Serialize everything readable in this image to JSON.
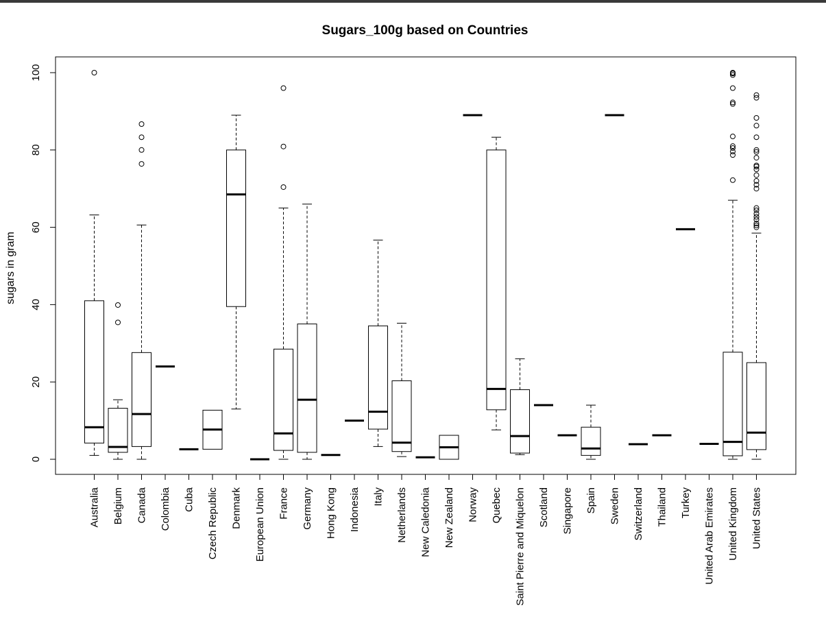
{
  "chart_data": {
    "type": "boxplot",
    "title": "Sugars_100g based on Countries",
    "xlabel": "",
    "ylabel": "sugars in gram",
    "ylim": [
      -4,
      104
    ],
    "yticks": [
      0,
      20,
      40,
      60,
      80,
      100
    ],
    "grid": false,
    "categories": [
      "Australia",
      "Belgium",
      "Canada",
      "Colombia",
      "Cuba",
      "Czech Republic",
      "Denmark",
      "European Union",
      "France",
      "Germany",
      "Hong Kong",
      "Indonesia",
      "Italy",
      "Netherlands",
      "New Caledonia",
      "New Zealand",
      "Norway",
      "Quebec",
      "Saint Pierre and Miquelon",
      "Scotland",
      "Singapore",
      "Spain",
      "Sweden",
      "Switzerland",
      "Thailand",
      "Turkey",
      "United Arab Emirates",
      "United Kingdom",
      "United States"
    ],
    "boxes": [
      {
        "min": 1.0,
        "q1": 4.2,
        "median": 8.3,
        "q3": 41.0,
        "max": 63.2,
        "outliers": [
          100
        ]
      },
      {
        "min": 0.0,
        "q1": 1.8,
        "median": 3.2,
        "q3": 13.2,
        "max": 15.4,
        "outliers": [
          35.4,
          39.9
        ]
      },
      {
        "min": 0.0,
        "q1": 3.3,
        "median": 11.7,
        "q3": 27.6,
        "max": 60.6,
        "outliers": [
          76.4,
          80.0,
          83.3,
          86.7
        ]
      },
      {
        "min": 24.0,
        "q1": 24.0,
        "median": 24.0,
        "q3": 24.0,
        "max": 24.0,
        "outliers": []
      },
      {
        "min": 2.6,
        "q1": 2.6,
        "median": 2.6,
        "q3": 2.6,
        "max": 2.6,
        "outliers": []
      },
      {
        "min": 2.6,
        "q1": 2.6,
        "median": 7.7,
        "q3": 12.7,
        "max": 12.7,
        "outliers": []
      },
      {
        "min": 13.0,
        "q1": 39.5,
        "median": 68.5,
        "q3": 80.0,
        "max": 89.0,
        "outliers": []
      },
      {
        "min": 0.0,
        "q1": 0.0,
        "median": 0.0,
        "q3": 0.0,
        "max": 0.0,
        "outliers": []
      },
      {
        "min": 0.0,
        "q1": 2.3,
        "median": 6.7,
        "q3": 28.5,
        "max": 65.0,
        "outliers": [
          70.4,
          80.9,
          96.0
        ]
      },
      {
        "min": 0.0,
        "q1": 1.8,
        "median": 15.4,
        "q3": 35.0,
        "max": 66.0,
        "outliers": []
      },
      {
        "min": 1.1,
        "q1": 1.1,
        "median": 1.1,
        "q3": 1.1,
        "max": 1.1,
        "outliers": []
      },
      {
        "min": 10.0,
        "q1": 10.0,
        "median": 10.0,
        "q3": 10.0,
        "max": 10.0,
        "outliers": []
      },
      {
        "min": 3.3,
        "q1": 7.8,
        "median": 12.3,
        "q3": 34.5,
        "max": 56.7,
        "outliers": []
      },
      {
        "min": 0.7,
        "q1": 2.0,
        "median": 4.3,
        "q3": 20.3,
        "max": 35.2,
        "outliers": []
      },
      {
        "min": 0.5,
        "q1": 0.5,
        "median": 0.5,
        "q3": 0.5,
        "max": 0.5,
        "outliers": []
      },
      {
        "min": 0.0,
        "q1": 0.0,
        "median": 3.1,
        "q3": 6.2,
        "max": 6.2,
        "outliers": []
      },
      {
        "min": 89.0,
        "q1": 89.0,
        "median": 89.0,
        "q3": 89.0,
        "max": 89.0,
        "outliers": []
      },
      {
        "min": 7.6,
        "q1": 12.8,
        "median": 18.2,
        "q3": 80.0,
        "max": 83.3,
        "outliers": []
      },
      {
        "min": 1.2,
        "q1": 1.6,
        "median": 6.0,
        "q3": 18.0,
        "max": 26.0,
        "outliers": []
      },
      {
        "min": 14.0,
        "q1": 14.0,
        "median": 14.0,
        "q3": 14.0,
        "max": 14.0,
        "outliers": []
      },
      {
        "min": 6.2,
        "q1": 6.2,
        "median": 6.2,
        "q3": 6.2,
        "max": 6.2,
        "outliers": []
      },
      {
        "min": 0.0,
        "q1": 1.0,
        "median": 2.8,
        "q3": 8.3,
        "max": 14.0,
        "outliers": []
      },
      {
        "min": 89.0,
        "q1": 89.0,
        "median": 89.0,
        "q3": 89.0,
        "max": 89.0,
        "outliers": []
      },
      {
        "min": 3.9,
        "q1": 3.9,
        "median": 3.9,
        "q3": 3.9,
        "max": 3.9,
        "outliers": []
      },
      {
        "min": 6.2,
        "q1": 6.2,
        "median": 6.2,
        "q3": 6.2,
        "max": 6.2,
        "outliers": []
      },
      {
        "min": 59.5,
        "q1": 59.5,
        "median": 59.5,
        "q3": 59.5,
        "max": 59.5,
        "outliers": []
      },
      {
        "min": 4.0,
        "q1": 4.0,
        "median": 4.0,
        "q3": 4.0,
        "max": 4.0,
        "outliers": []
      },
      {
        "min": 0.0,
        "q1": 0.9,
        "median": 4.5,
        "q3": 27.7,
        "max": 67.0,
        "outliers": [
          72.2,
          78.7,
          79.6,
          80.5,
          81.0,
          83.5,
          91.9,
          92.3,
          96.0,
          99.4,
          99.8,
          100.0
        ]
      },
      {
        "min": 0.0,
        "q1": 2.5,
        "median": 6.9,
        "q3": 25.0,
        "max": 58.5,
        "outliers": [
          60.0,
          60.5,
          61.0,
          62.0,
          62.7,
          63.5,
          64.4,
          65.0,
          70.0,
          71.0,
          72.0,
          73.5,
          75.0,
          75.7,
          76.0,
          78.0,
          79.5,
          80.0,
          83.3,
          86.3,
          88.3,
          93.5,
          94.2
        ]
      }
    ]
  }
}
